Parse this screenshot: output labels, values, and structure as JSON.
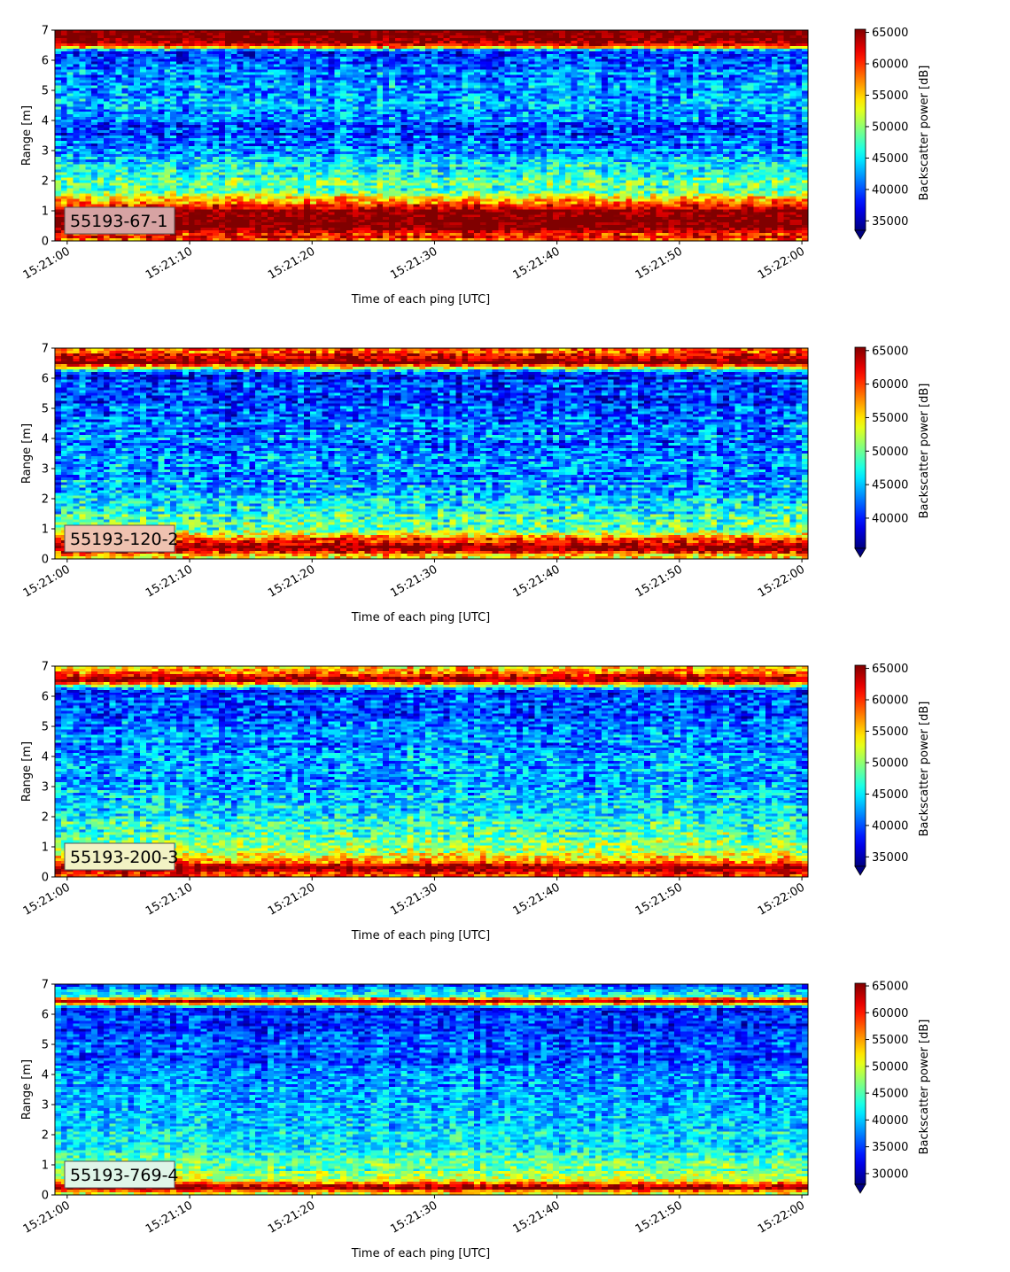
{
  "figure": {
    "x_ticks": [
      "15:21:00",
      "15:21:10",
      "15:21:20",
      "15:21:30",
      "15:21:40",
      "15:21:50",
      "15:22:00"
    ],
    "y_ticks": [
      "0",
      "1",
      "2",
      "3",
      "4",
      "5",
      "6",
      "7"
    ],
    "xlabel": "Time of each ping [UTC]",
    "ylabel": "Range [m]",
    "colorbar_label": "Backscatter power [dB]",
    "colormap": "jet",
    "colormap_colors": [
      "#00007f",
      "#0000ff",
      "#007fff",
      "#00ffff",
      "#7fff7f",
      "#ffff00",
      "#ff7f00",
      "#ff0000",
      "#7f0000"
    ]
  },
  "chart_data": [
    {
      "type": "heatmap",
      "label": "55193-67-1",
      "label_box_color": "#d7a3a3",
      "xlabel": "Time of each ping [UTC]",
      "ylabel": "Range [m]",
      "x_range_seconds": [
        0,
        60
      ],
      "ylim": [
        0,
        7
      ],
      "colorbar_ticks": [
        "35000",
        "40000",
        "45000",
        "50000",
        "55000",
        "60000",
        "65000"
      ],
      "clim": [
        33500,
        65500
      ],
      "range_profile": [
        {
          "range_m": 0.1,
          "value": 60000
        },
        {
          "range_m": 0.5,
          "value": 66000
        },
        {
          "range_m": 1.0,
          "value": 65000
        },
        {
          "range_m": 1.3,
          "value": 56000
        },
        {
          "range_m": 1.7,
          "value": 49000
        },
        {
          "range_m": 2.2,
          "value": 47000
        },
        {
          "range_m": 3.0,
          "value": 42000
        },
        {
          "range_m": 3.6,
          "value": 39000
        },
        {
          "range_m": 4.5,
          "value": 43000
        },
        {
          "range_m": 5.5,
          "value": 42000
        },
        {
          "range_m": 6.3,
          "value": 40000
        },
        {
          "range_m": 6.5,
          "value": 62000
        },
        {
          "range_m": 6.8,
          "value": 66000
        }
      ]
    },
    {
      "type": "heatmap",
      "label": "55193-120-2",
      "label_box_color": "#efc2b0",
      "xlabel": "Time of each ping [UTC]",
      "ylabel": "Range [m]",
      "x_range_seconds": [
        0,
        60
      ],
      "ylim": [
        0,
        7
      ],
      "colorbar_ticks": [
        "40000",
        "45000",
        "50000",
        "55000",
        "60000",
        "65000"
      ],
      "clim": [
        35500,
        65500
      ],
      "range_profile": [
        {
          "range_m": 0.1,
          "value": 56000
        },
        {
          "range_m": 0.35,
          "value": 66000
        },
        {
          "range_m": 0.65,
          "value": 59000
        },
        {
          "range_m": 1.0,
          "value": 50000
        },
        {
          "range_m": 1.6,
          "value": 47000
        },
        {
          "range_m": 2.5,
          "value": 44000
        },
        {
          "range_m": 4.0,
          "value": 43000
        },
        {
          "range_m": 5.5,
          "value": 41000
        },
        {
          "range_m": 6.2,
          "value": 40000
        },
        {
          "range_m": 6.5,
          "value": 66000
        },
        {
          "range_m": 6.85,
          "value": 60000
        }
      ]
    },
    {
      "type": "heatmap",
      "label": "55193-200-3",
      "label_box_color": "#f2f2c4",
      "xlabel": "Time of each ping [UTC]",
      "ylabel": "Range [m]",
      "x_range_seconds": [
        0,
        60
      ],
      "ylim": [
        0,
        7
      ],
      "colorbar_ticks": [
        "35000",
        "40000",
        "45000",
        "50000",
        "55000",
        "60000",
        "65000"
      ],
      "clim": [
        33500,
        65500
      ],
      "range_profile": [
        {
          "range_m": 0.05,
          "value": 60000
        },
        {
          "range_m": 0.3,
          "value": 66000
        },
        {
          "range_m": 0.6,
          "value": 54000
        },
        {
          "range_m": 1.0,
          "value": 50000
        },
        {
          "range_m": 1.6,
          "value": 47000
        },
        {
          "range_m": 2.5,
          "value": 44000
        },
        {
          "range_m": 4.0,
          "value": 42000
        },
        {
          "range_m": 5.5,
          "value": 40000
        },
        {
          "range_m": 6.2,
          "value": 39000
        },
        {
          "range_m": 6.55,
          "value": 66000
        },
        {
          "range_m": 6.85,
          "value": 56000
        }
      ]
    },
    {
      "type": "heatmap",
      "label": "55193-769-4",
      "label_box_color": "#dff5e8",
      "xlabel": "Time of each ping [UTC]",
      "ylabel": "Range [m]",
      "x_range_seconds": [
        0,
        60
      ],
      "ylim": [
        0,
        7
      ],
      "colorbar_ticks": [
        "30000",
        "35000",
        "40000",
        "45000",
        "50000",
        "55000",
        "60000",
        "65000"
      ],
      "clim": [
        28000,
        65500
      ],
      "range_profile": [
        {
          "range_m": 0.05,
          "value": 52000
        },
        {
          "range_m": 0.25,
          "value": 66000
        },
        {
          "range_m": 0.45,
          "value": 50000
        },
        {
          "range_m": 0.8,
          "value": 46000
        },
        {
          "range_m": 1.5,
          "value": 43000
        },
        {
          "range_m": 2.5,
          "value": 40000
        },
        {
          "range_m": 4.0,
          "value": 37000
        },
        {
          "range_m": 5.5,
          "value": 35000
        },
        {
          "range_m": 6.2,
          "value": 34000
        },
        {
          "range_m": 6.45,
          "value": 66000
        },
        {
          "range_m": 6.6,
          "value": 44000
        },
        {
          "range_m": 6.9,
          "value": 36000
        }
      ]
    }
  ]
}
